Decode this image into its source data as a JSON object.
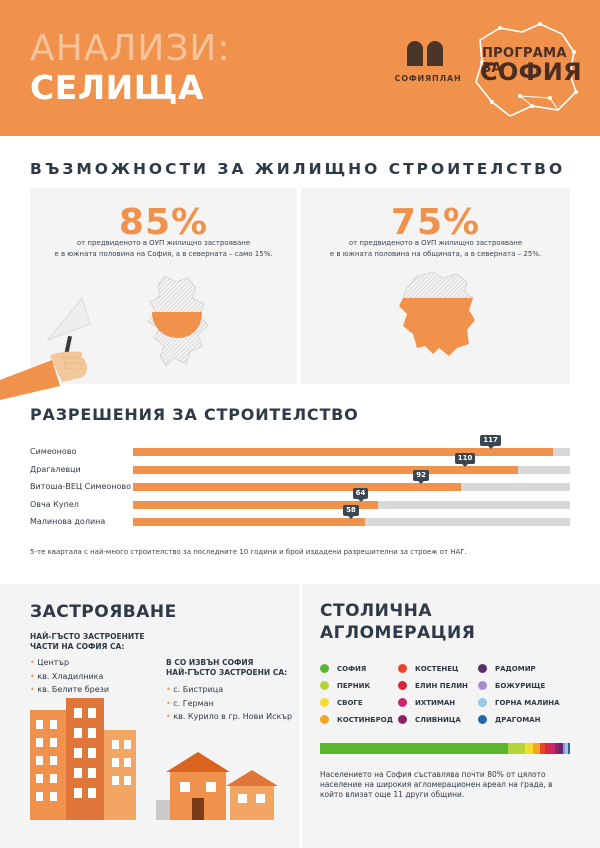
{
  "header": {
    "title_line1": "АНАЛИЗИ:",
    "title_line2": "СЕЛИЩА",
    "sofiaplan_name": "СОФИЯПЛАН",
    "program_line1": "ПРОГРАМА ЗА",
    "program_line2": "СОФИЯ",
    "colors": {
      "background": "#f0924c",
      "title_light": "#f6c49c",
      "title_bold": "#ffffff"
    }
  },
  "housing": {
    "title": "ВЪЗМОЖНОСТИ ЗА ЖИЛИЩНО СТРОИТЕЛСТВО",
    "left": {
      "value": "85%",
      "line1": "от предвиденото в ОУП жилищно застрояване",
      "line2": "е в южната половина на София, а в северната – само 15%."
    },
    "right": {
      "value": "75%",
      "line1": "от предвиденото в ОУП жилищно застрояване",
      "line2": "е в южната половина на общината, а в северната – 25%."
    }
  },
  "permits": {
    "title": "РАЗРЕШЕНИЯ ЗА СТРОИТЕЛСТВО",
    "note": "5-те квартала с най-много строителство за последните 10 години и брой издадени разрешителни за строеж от НАГ.",
    "rows": [
      {
        "label": "Симеоново",
        "value": "117",
        "fraction": 0.96
      },
      {
        "label": "Драгалевци",
        "value": "110",
        "fraction": 0.88
      },
      {
        "label": "Витоша-ВЕЦ Симеоново",
        "value": "92",
        "fraction": 0.75
      },
      {
        "label": "Овча Купел",
        "value": "64",
        "fraction": 0.56
      },
      {
        "label": "Малинова долина",
        "value": "58",
        "fraction": 0.53
      }
    ],
    "colors": {
      "fill": "#f0924c",
      "track": "#d8d8d8",
      "tag": "#3a4651"
    }
  },
  "development": {
    "title": "ЗАСТРОЯВАНЕ",
    "sofia_head_line1": "НАЙ-ГЪСТО ЗАСТРОЕНИТЕ",
    "sofia_head_line2": "ЧАСТИ НА СОФИЯ СА:",
    "sofia_items": [
      "Център",
      "кв. Хладилника",
      "кв. Белите брези"
    ],
    "outside_head_line1": "В СО ИЗВЪН СОФИЯ",
    "outside_head_line2": "НАЙ-ГЪСТО ЗАСТРОЕНИ СА:",
    "outside_items": [
      "с. Бистрица",
      "с. Герман",
      "кв. Курило в гр. Нови Искър"
    ]
  },
  "agglomeration": {
    "title_line1": "СТОЛИЧНА",
    "title_line2": "АГЛОМЕРАЦИЯ",
    "legend": [
      {
        "label": "СОФИЯ",
        "color": "#5cb531"
      },
      {
        "label": "ПЕРНИК",
        "color": "#b6d33a"
      },
      {
        "label": "СВОГЕ",
        "color": "#f3dc2b"
      },
      {
        "label": "КОСТИНБРОД",
        "color": "#f5a623"
      },
      {
        "label": "КОСТЕНЕЦ",
        "color": "#e8452f"
      },
      {
        "label": "ЕЛИН ПЕЛИН",
        "color": "#d6283c"
      },
      {
        "label": "ИХТИМАН",
        "color": "#c7266f"
      },
      {
        "label": "СЛИВНИЦА",
        "color": "#8a2364"
      },
      {
        "label": "РАДОМИР",
        "color": "#5b2c6f"
      },
      {
        "label": "БОЖУРИЩЕ",
        "color": "#a58fc9"
      },
      {
        "label": "ГОРНА МАЛИНА",
        "color": "#97c9e0"
      },
      {
        "label": "ДРАГОМАН",
        "color": "#1f6aa5"
      }
    ],
    "shares": [
      0.76,
      0.07,
      0.03,
      0.03,
      0.02,
      0.02,
      0.02,
      0.015,
      0.015,
      0.01,
      0.01,
      0.01
    ],
    "note": "Населението на София съставлява почти 80% от цялото население на широкия агломерационен ареал на града, в който влизат още 11 други общини."
  }
}
